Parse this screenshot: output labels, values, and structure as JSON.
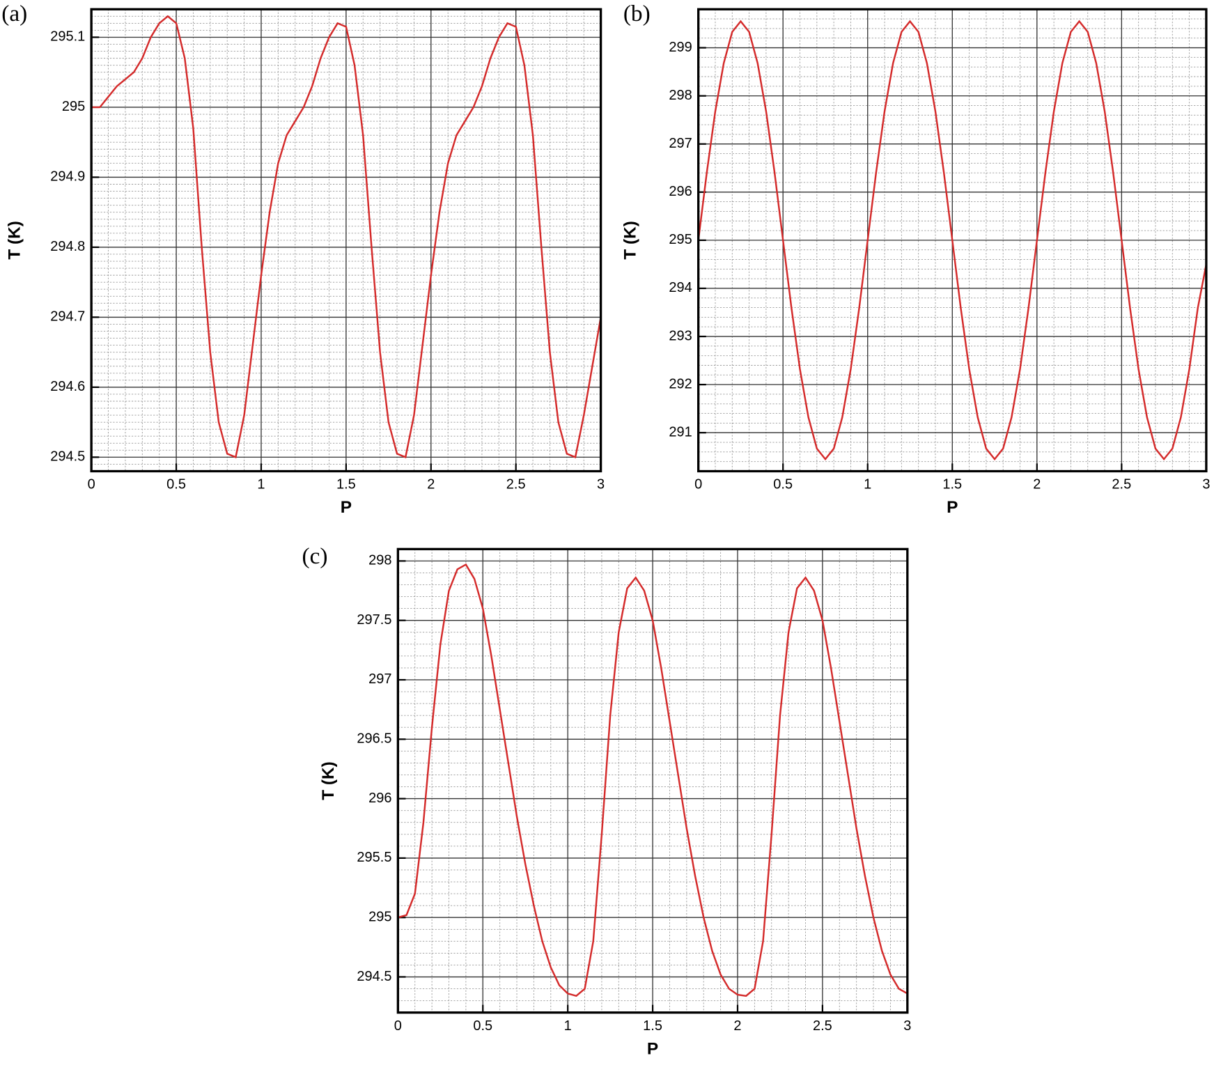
{
  "chart_data": [
    {
      "type": "line",
      "label": "(a)",
      "xlabel": "P",
      "ylabel": "T (K)",
      "color": "#d42a2a",
      "grid": true,
      "xminor": 5,
      "yminor": 10,
      "xlim": [
        0,
        3
      ],
      "xticks": [
        0,
        0.5,
        1,
        1.5,
        2,
        2.5,
        3
      ],
      "ylim": [
        294.48,
        295.14
      ],
      "yticks": [
        294.5,
        294.6,
        294.7,
        294.8,
        294.9,
        295,
        295.1
      ],
      "x": [
        0,
        0.05,
        0.1,
        0.15,
        0.2,
        0.25,
        0.3,
        0.35,
        0.4,
        0.45,
        0.5,
        0.55,
        0.6,
        0.65,
        0.7,
        0.75,
        0.8,
        0.85,
        0.9,
        0.95,
        1,
        1.05,
        1.1,
        1.15,
        1.2,
        1.25,
        1.3,
        1.35,
        1.4,
        1.45,
        1.5,
        1.55,
        1.6,
        1.65,
        1.7,
        1.75,
        1.8,
        1.85,
        1.9,
        1.95,
        2,
        2.05,
        2.1,
        2.15,
        2.2,
        2.25,
        2.3,
        2.35,
        2.4,
        2.45,
        2.5,
        2.55,
        2.6,
        2.65,
        2.7,
        2.75,
        2.8,
        2.85,
        2.9,
        2.95,
        3
      ],
      "values": [
        295.0,
        295.0,
        295.015,
        295.03,
        295.04,
        295.05,
        295.07,
        295.1,
        295.12,
        295.13,
        295.12,
        295.07,
        294.97,
        294.8,
        294.65,
        294.55,
        294.505,
        294.5,
        294.56,
        294.66,
        294.76,
        294.85,
        294.92,
        294.96,
        294.98,
        295.0,
        295.03,
        295.07,
        295.1,
        295.12,
        295.115,
        295.06,
        294.96,
        294.8,
        294.65,
        294.55,
        294.505,
        294.5,
        294.56,
        294.66,
        294.76,
        294.85,
        294.92,
        294.96,
        294.98,
        295.0,
        295.03,
        295.07,
        295.1,
        295.12,
        295.115,
        295.06,
        294.96,
        294.8,
        294.65,
        294.55,
        294.505,
        294.5,
        294.56,
        294.63,
        294.7
      ]
    },
    {
      "type": "line",
      "label": "(b)",
      "xlabel": "P",
      "ylabel": "T (K)",
      "color": "#d42a2a",
      "grid": true,
      "xminor": 5,
      "yminor": 5,
      "xlim": [
        0,
        3
      ],
      "xticks": [
        0,
        0.5,
        1,
        1.5,
        2,
        2.5,
        3
      ],
      "ylim": [
        290.2,
        299.8
      ],
      "yticks": [
        291,
        292,
        293,
        294,
        295,
        296,
        297,
        298,
        299
      ],
      "x": [
        0,
        0.05,
        0.1,
        0.15,
        0.2,
        0.25,
        0.3,
        0.35,
        0.4,
        0.45,
        0.5,
        0.55,
        0.6,
        0.65,
        0.7,
        0.75,
        0.8,
        0.85,
        0.9,
        0.95,
        1,
        1.05,
        1.1,
        1.15,
        1.2,
        1.25,
        1.3,
        1.35,
        1.4,
        1.45,
        1.5,
        1.55,
        1.6,
        1.65,
        1.7,
        1.75,
        1.8,
        1.85,
        1.9,
        1.95,
        2,
        2.05,
        2.1,
        2.15,
        2.2,
        2.25,
        2.3,
        2.35,
        2.4,
        2.45,
        2.5,
        2.55,
        2.6,
        2.65,
        2.7,
        2.75,
        2.8,
        2.85,
        2.9,
        2.95,
        3
      ],
      "values": [
        295,
        296.41,
        297.68,
        298.68,
        299.33,
        299.55,
        299.33,
        298.68,
        297.68,
        296.41,
        295,
        293.59,
        292.32,
        291.32,
        290.67,
        290.45,
        290.67,
        291.32,
        292.32,
        293.59,
        295,
        296.41,
        297.68,
        298.68,
        299.33,
        299.55,
        299.33,
        298.68,
        297.68,
        296.41,
        295,
        293.59,
        292.32,
        291.32,
        290.67,
        290.45,
        290.67,
        291.32,
        292.32,
        293.59,
        295,
        296.41,
        297.68,
        298.68,
        299.33,
        299.55,
        299.33,
        298.68,
        297.68,
        296.41,
        295,
        293.59,
        292.32,
        291.32,
        290.67,
        290.45,
        290.67,
        291.32,
        292.32,
        293.59,
        294.5
      ]
    },
    {
      "type": "line",
      "label": "(c)",
      "xlabel": "P",
      "ylabel": "T (K)",
      "color": "#d42a2a",
      "grid": true,
      "xminor": 5,
      "yminor": 5,
      "xlim": [
        0,
        3
      ],
      "xticks": [
        0,
        0.5,
        1,
        1.5,
        2,
        2.5,
        3
      ],
      "ylim": [
        294.2,
        298.1
      ],
      "yticks": [
        294.5,
        295,
        295.5,
        296,
        296.5,
        297,
        297.5,
        298
      ],
      "x": [
        0,
        0.05,
        0.1,
        0.15,
        0.2,
        0.25,
        0.3,
        0.35,
        0.4,
        0.45,
        0.5,
        0.55,
        0.6,
        0.65,
        0.7,
        0.75,
        0.8,
        0.85,
        0.9,
        0.95,
        1,
        1.05,
        1.1,
        1.15,
        1.2,
        1.25,
        1.3,
        1.35,
        1.4,
        1.45,
        1.5,
        1.55,
        1.6,
        1.65,
        1.7,
        1.75,
        1.8,
        1.85,
        1.9,
        1.95,
        2,
        2.05,
        2.1,
        2.15,
        2.2,
        2.25,
        2.3,
        2.35,
        2.4,
        2.45,
        2.5,
        2.55,
        2.6,
        2.65,
        2.7,
        2.75,
        2.8,
        2.85,
        2.9,
        2.95,
        3
      ],
      "values": [
        295.0,
        295.02,
        295.2,
        295.8,
        296.6,
        297.3,
        297.75,
        297.93,
        297.97,
        297.85,
        297.6,
        297.2,
        296.75,
        296.3,
        295.85,
        295.45,
        295.1,
        294.8,
        294.58,
        294.43,
        294.36,
        294.34,
        294.4,
        294.8,
        295.7,
        296.7,
        297.4,
        297.77,
        297.86,
        297.75,
        297.5,
        297.1,
        296.65,
        296.2,
        295.75,
        295.35,
        295.0,
        294.72,
        294.52,
        294.4,
        294.35,
        294.34,
        294.4,
        294.8,
        295.7,
        296.7,
        297.4,
        297.77,
        297.86,
        297.75,
        297.5,
        297.1,
        296.65,
        296.2,
        295.75,
        295.35,
        295.0,
        294.72,
        294.52,
        294.4,
        294.36
      ]
    }
  ]
}
